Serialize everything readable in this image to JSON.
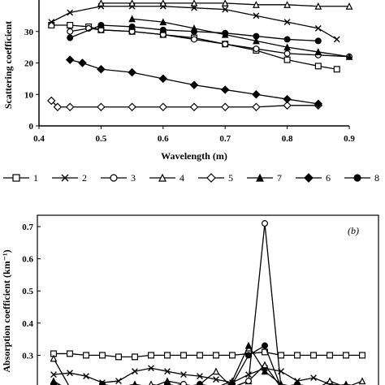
{
  "chart_data": [
    {
      "type": "line",
      "panel_label": "",
      "xlabel": "Wavelength (m)",
      "ylabel": "Scattering coefficient",
      "xlim": [
        0.4,
        0.9
      ],
      "ylim": [
        0,
        40
      ],
      "x_ticks": [
        "0.4",
        "0.5",
        "0.6",
        "0.7",
        "0.8",
        "0.9"
      ],
      "y_ticks": [
        "0",
        "10",
        "20",
        "30"
      ],
      "grid": false,
      "series": [
        {
          "name": "1",
          "marker": "square-open",
          "x": [
            0.42,
            0.45,
            0.48,
            0.5,
            0.55,
            0.6,
            0.65,
            0.7,
            0.75,
            0.8,
            0.85,
            0.88
          ],
          "y": [
            32,
            32,
            31.5,
            30.5,
            30,
            29,
            28,
            26,
            24,
            21,
            19,
            18
          ]
        },
        {
          "name": "2",
          "marker": "x",
          "x": [
            0.42,
            0.45,
            0.5,
            0.55,
            0.6,
            0.65,
            0.7,
            0.75,
            0.8,
            0.85,
            0.88
          ],
          "y": [
            33,
            36,
            38,
            38,
            38,
            37.5,
            37,
            35,
            33,
            31,
            27.5
          ]
        },
        {
          "name": "3",
          "marker": "circle-open",
          "x": [
            0.45,
            0.48,
            0.5,
            0.55,
            0.6,
            0.65,
            0.7,
            0.75,
            0.8,
            0.85,
            0.9
          ],
          "y": [
            30,
            31,
            30.5,
            30,
            29,
            27.5,
            26,
            24.5,
            23,
            22.5,
            22
          ]
        },
        {
          "name": "4",
          "marker": "triangle-open",
          "x": [
            0.5,
            0.55,
            0.6,
            0.65,
            0.7,
            0.75,
            0.8,
            0.85,
            0.9
          ],
          "y": [
            39,
            39,
            39,
            39,
            39,
            38.5,
            38.5,
            38,
            38
          ]
        },
        {
          "name": "5",
          "marker": "diamond-open",
          "x": [
            0.42,
            0.43,
            0.45,
            0.5,
            0.55,
            0.6,
            0.65,
            0.7,
            0.75,
            0.8,
            0.85
          ],
          "y": [
            8,
            6,
            6,
            6,
            6,
            6,
            6,
            6,
            6,
            6.5,
            6.5
          ]
        },
        {
          "name": "7",
          "marker": "triangle-filled",
          "x": [
            0.55,
            0.6,
            0.65,
            0.7,
            0.75,
            0.8,
            0.85,
            0.9
          ],
          "y": [
            34,
            33,
            31,
            29,
            27,
            25,
            23.5,
            22
          ]
        },
        {
          "name": "6",
          "marker": "diamond-filled",
          "x": [
            0.45,
            0.47,
            0.5,
            0.55,
            0.6,
            0.65,
            0.7,
            0.75,
            0.8,
            0.85
          ],
          "y": [
            21,
            20,
            18,
            17,
            15,
            13,
            11.5,
            10,
            8.5,
            7
          ]
        },
        {
          "name": "8",
          "marker": "circle-filled",
          "x": [
            0.45,
            0.5,
            0.55,
            0.6,
            0.65,
            0.7,
            0.75,
            0.8,
            0.85
          ],
          "y": [
            28,
            32,
            31.5,
            30.5,
            30,
            29.5,
            28.5,
            27.5,
            27
          ]
        }
      ]
    },
    {
      "type": "line",
      "panel_label": "(b)",
      "xlabel": "",
      "ylabel": "Absorption coefficient (km⁻¹)",
      "ylim": [
        0,
        0.7
      ],
      "y_ticks": [
        "0.7",
        "0.6",
        "0.5",
        "0.4",
        "0.3",
        "0.2"
      ],
      "grid": false,
      "series": [
        {
          "name": "1",
          "marker": "square-open",
          "y": [
            0.305,
            0.305,
            0.3,
            0.3,
            0.295,
            0.295,
            0.3,
            0.3,
            0.3,
            0.3,
            0.3,
            0.3,
            0.305,
            0.31,
            0.3,
            0.3,
            0.3,
            0.3,
            0.3,
            0.3
          ]
        },
        {
          "name": "2",
          "marker": "x",
          "y": [
            0.24,
            0.245,
            0.235,
            0.215,
            0.22,
            0.25,
            0.26,
            0.25,
            0.24,
            0.235,
            0.225,
            0.215,
            0.24,
            0.26,
            0.25,
            0.22,
            0.23,
            0.21,
            0.205,
            0.19
          ]
        },
        {
          "name": "4",
          "marker": "triangle-open",
          "y": [
            0.29,
            0.2,
            0.18,
            0.2,
            0.19,
            0.17,
            0.21,
            0.2,
            0.18,
            0.21,
            0.25,
            0.2,
            0.22,
            0.27,
            0.2,
            0.21,
            0.19,
            0.22,
            0.2,
            0.22
          ]
        },
        {
          "name": "8",
          "marker": "circle-filled",
          "y": [
            0.21,
            0.2,
            0.19,
            0.21,
            0.2,
            0.2,
            0.19,
            0.21,
            0.2,
            0.21,
            0.2,
            0.21,
            0.3,
            0.33,
            0.2,
            0.21,
            0.2,
            0.2,
            0.19,
            0.2
          ]
        },
        {
          "name": "7",
          "marker": "triangle-filled",
          "y": [
            0.22,
            0.19,
            0.2,
            0.18,
            0.2,
            0.21,
            0.2,
            0.22,
            0.21,
            0.2,
            0.2,
            0.22,
            0.33,
            0.25,
            0.21,
            0.2,
            0.19,
            0.2,
            0.21,
            0.2
          ]
        },
        {
          "name": "3",
          "marker": "circle-open",
          "y": [
            0.2,
            0.2,
            0.19,
            0.2,
            0.2,
            0.19,
            0.2,
            0.2,
            0.21,
            0.2,
            0.2,
            0.2,
            0.22,
            0.71,
            0.2,
            0.2,
            0.2,
            0.19,
            0.2,
            0.2
          ]
        }
      ]
    }
  ],
  "legend": {
    "entries": [
      {
        "label": "1",
        "marker": "square-open"
      },
      {
        "label": "2",
        "marker": "x"
      },
      {
        "label": "3",
        "marker": "circle-open"
      },
      {
        "label": "4",
        "marker": "triangle-open"
      },
      {
        "label": "5",
        "marker": "diamond-open"
      },
      {
        "label": "7",
        "marker": "triangle-filled"
      },
      {
        "label": "6",
        "marker": "diamond-filled"
      },
      {
        "label": "8",
        "marker": "circle-filled"
      }
    ]
  }
}
